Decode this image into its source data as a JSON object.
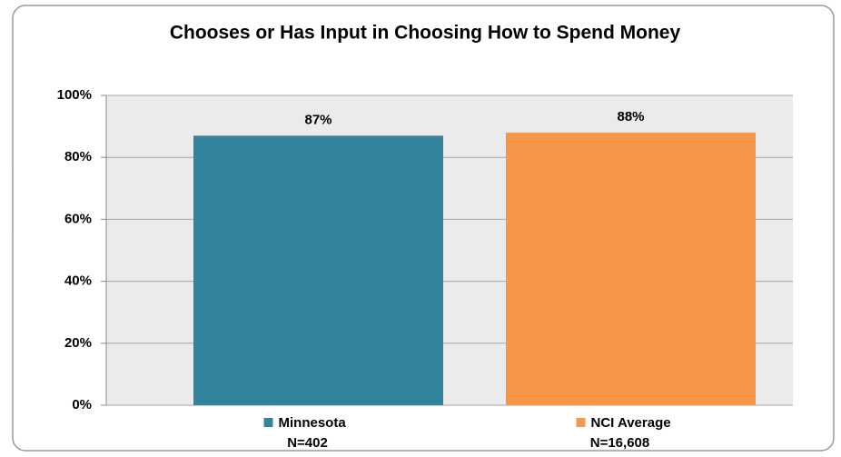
{
  "chart_data": {
    "type": "bar",
    "title": "Chooses or Has Input in Choosing How to Spend Money",
    "categories": [
      "Minnesota",
      "NCI Average"
    ],
    "category_notes": [
      "N=402",
      "N=16,608"
    ],
    "values": [
      87,
      88
    ],
    "value_labels": [
      "87%",
      "88%"
    ],
    "colors": [
      "#31849b",
      "#f79646"
    ],
    "ylim": [
      0,
      100
    ],
    "yticks": [
      {
        "value": 0,
        "label": "0%"
      },
      {
        "value": 20,
        "label": "20%"
      },
      {
        "value": 40,
        "label": "40%"
      },
      {
        "value": 60,
        "label": "60%"
      },
      {
        "value": 80,
        "label": "80%"
      },
      {
        "value": 100,
        "label": "100%"
      }
    ],
    "grid": true
  }
}
